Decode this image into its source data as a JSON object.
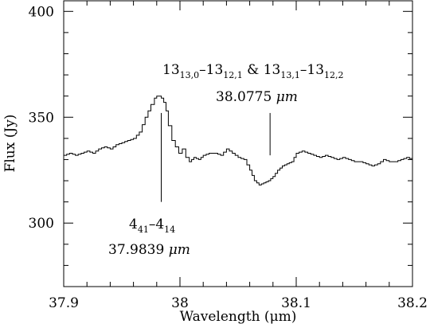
{
  "chart_data": {
    "type": "line",
    "xlabel": "Wavelength (μm)",
    "ylabel": "Flux (Jy)",
    "xlim": [
      37.9,
      38.2
    ],
    "ylim": [
      270,
      405
    ],
    "x_ticks": [
      37.9,
      38.0,
      38.1,
      38.2
    ],
    "x_tick_labels": [
      "37.9",
      "38",
      "38.1",
      "38.2"
    ],
    "y_ticks": [
      300,
      350,
      400
    ],
    "y_tick_labels": [
      "300",
      "350",
      "400"
    ],
    "grid": false,
    "legend": "none",
    "series": [
      {
        "x": [
          37.9,
          37.905,
          37.91,
          37.915,
          37.92,
          37.925,
          37.93,
          37.935,
          37.94,
          37.945,
          37.95,
          37.955,
          37.96,
          37.965,
          37.97,
          37.975,
          37.978,
          37.98,
          37.982,
          37.984,
          37.986,
          37.988,
          37.99,
          37.993,
          37.996,
          37.999,
          38.002,
          38.005,
          38.008,
          38.012,
          38.016,
          38.02,
          38.025,
          38.03,
          38.035,
          38.04,
          38.045,
          38.05,
          38.055,
          38.06,
          38.064,
          38.068,
          38.072,
          38.076,
          38.08,
          38.084,
          38.088,
          38.092,
          38.096,
          38.1,
          38.105,
          38.11,
          38.115,
          38.12,
          38.125,
          38.13,
          38.135,
          38.14,
          38.145,
          38.15,
          38.155,
          38.16,
          38.165,
          38.17,
          38.175,
          38.18,
          38.185,
          38.19,
          38.195,
          38.2
        ],
        "y": [
          332,
          333,
          332,
          333,
          334,
          333,
          335,
          336,
          335,
          337,
          338,
          339,
          340,
          343,
          350,
          356,
          359,
          360,
          360,
          359,
          357,
          353,
          346,
          339,
          336,
          333,
          335,
          331,
          329,
          331,
          330,
          332,
          333,
          333,
          332,
          335,
          333,
          331,
          330,
          325,
          320,
          318,
          319,
          320,
          322,
          325,
          327,
          328,
          329,
          333,
          334,
          333,
          332,
          331,
          332,
          331,
          330,
          331,
          330,
          329,
          329,
          328,
          327,
          328,
          330,
          329,
          329,
          330,
          331,
          330
        ]
      }
    ],
    "annotations": [
      {
        "x": 37.9839,
        "line_top": 352,
        "line_bottom": 310,
        "transition": {
          "a": "4",
          "a_sub": "41",
          "dash": "–",
          "b": "4",
          "b_sub": "14"
        },
        "wavelength_value": "37.9839",
        "wavelength_unit": "μm"
      },
      {
        "x": 38.0775,
        "line_top": 352,
        "line_bottom": 332,
        "transition": {
          "a": "13",
          "a_sub": "13,0",
          "dash": "–",
          "b": "13",
          "b_sub": "12,1",
          "joiner": " & ",
          "c": "13",
          "c_sub": "13,1",
          "dash2": "–",
          "d": "13",
          "d_sub": "12,2"
        },
        "wavelength_value": "38.0775",
        "wavelength_unit": "μm"
      }
    ]
  }
}
